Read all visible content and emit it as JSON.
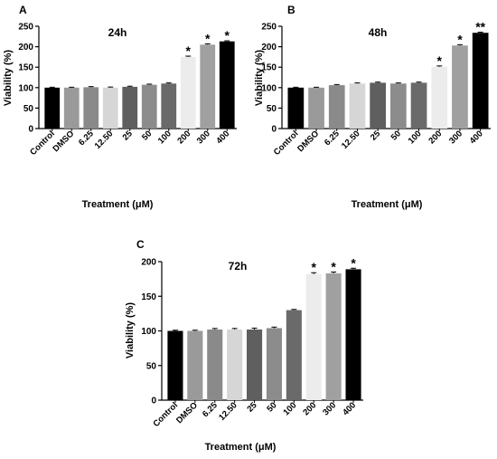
{
  "chart_data": [
    {
      "type": "bar",
      "panel": "A",
      "title": "24h",
      "xlabel": "Treatment (μM)",
      "ylabel": "Viability (%)",
      "ylim": [
        0,
        250
      ],
      "yticks": [
        0,
        50,
        100,
        150,
        200,
        250
      ],
      "categories": [
        "Control",
        "DMSO",
        "6.25",
        "12.50",
        "25",
        "50",
        "100",
        "200",
        "300",
        "400"
      ],
      "values": [
        100,
        100,
        101,
        100,
        102,
        107,
        110,
        175,
        205,
        213
      ],
      "errors": [
        1,
        1,
        1.5,
        1.5,
        1.5,
        1.5,
        1.5,
        2,
        2,
        1.5
      ],
      "significance": [
        "",
        "",
        "",
        "",
        "",
        "",
        "",
        "*",
        "*",
        "*"
      ],
      "bar_colors": [
        "#000000",
        "#9a9a9a",
        "#8a8a8a",
        "#d6d6d6",
        "#5f5f5f",
        "#8c8c8c",
        "#6a6a6a",
        "#ececec",
        "#a0a0a0",
        "#000000"
      ]
    },
    {
      "type": "bar",
      "panel": "B",
      "title": "48h",
      "xlabel": "Treatment (μM)",
      "ylabel": "Viability (%)",
      "ylim": [
        0,
        250
      ],
      "yticks": [
        0,
        50,
        100,
        150,
        200,
        250
      ],
      "categories": [
        "Control",
        "DMSO",
        "6.25",
        "12.50",
        "25",
        "50",
        "100",
        "200",
        "300",
        "400"
      ],
      "values": [
        100,
        100,
        106,
        110,
        112,
        110,
        112,
        151,
        203,
        234
      ],
      "errors": [
        1,
        1,
        1.5,
        1.5,
        1.5,
        1.5,
        1.5,
        2,
        2,
        1.5
      ],
      "significance": [
        "",
        "",
        "",
        "",
        "",
        "",
        "",
        "*",
        "*",
        "**"
      ],
      "bar_colors": [
        "#000000",
        "#9a9a9a",
        "#8a8a8a",
        "#d6d6d6",
        "#5f5f5f",
        "#8c8c8c",
        "#6a6a6a",
        "#ececec",
        "#a0a0a0",
        "#000000"
      ]
    },
    {
      "type": "bar",
      "panel": "C",
      "title": "72h",
      "xlabel": "Treatment (μM)",
      "ylabel": "Viability (%)",
      "ylim": [
        0,
        200
      ],
      "yticks": [
        0,
        50,
        100,
        150,
        200
      ],
      "categories": [
        "Control",
        "DMSO",
        "6.25",
        "12.50",
        "25",
        "50",
        "100",
        "200",
        "300",
        "400"
      ],
      "values": [
        100,
        100,
        102,
        102,
        102,
        104,
        130,
        182,
        183,
        189
      ],
      "errors": [
        1,
        1,
        1.5,
        1.5,
        2,
        1.5,
        1,
        2,
        2,
        1.5
      ],
      "significance": [
        "",
        "",
        "",
        "",
        "",
        "",
        "",
        "*",
        "*",
        "*"
      ],
      "bar_colors": [
        "#000000",
        "#9a9a9a",
        "#8a8a8a",
        "#d6d6d6",
        "#5f5f5f",
        "#8c8c8c",
        "#6a6a6a",
        "#ececec",
        "#a0a0a0",
        "#000000"
      ]
    }
  ]
}
